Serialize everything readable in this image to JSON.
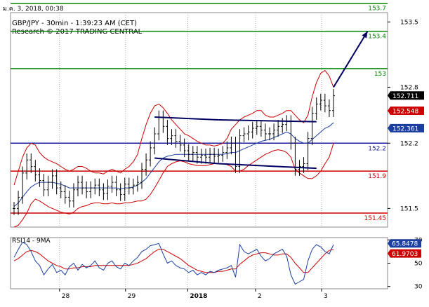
{
  "header": {
    "timestamp": "ม.ค. 3, 2018, 00:38"
  },
  "chart_data": [
    {
      "type": "line",
      "instrument": "GBP/JPY - 30min - 1:39:23 AM (CET)",
      "source": "Research © 2017 TRADING CENTRAL",
      "y_range": [
        151.3,
        153.6
      ],
      "y_ticks": [
        {
          "value": 151.5,
          "label": "151.5"
        },
        {
          "value": 152.2,
          "label": "152.2"
        },
        {
          "value": 152.8,
          "label": "152.8"
        },
        {
          "value": 153.5,
          "label": "153.5"
        }
      ],
      "x_ticks": [
        {
          "pos": 0.13,
          "label": "28",
          "bold": false
        },
        {
          "pos": 0.305,
          "label": "29",
          "bold": false
        },
        {
          "pos": 0.47,
          "label": "2018",
          "bold": true
        },
        {
          "pos": 0.65,
          "label": "2",
          "bold": false
        },
        {
          "pos": 0.825,
          "label": "3",
          "bold": false
        }
      ],
      "levels": [
        {
          "label": "153.7",
          "value": 153.7,
          "color": "#008800"
        },
        {
          "label": "153.4",
          "value": 153.4,
          "color": "#008800"
        },
        {
          "label": "153",
          "value": 153.0,
          "color": "#008800"
        },
        {
          "label": "152.2",
          "value": 152.2,
          "color": "#1a1aa0"
        },
        {
          "label": "151.9",
          "value": 151.9,
          "color": "#cc0000"
        },
        {
          "label": "151.45",
          "value": 151.45,
          "color": "#cc0000"
        }
      ],
      "price_tags": [
        {
          "label": "152.711",
          "value": 152.711,
          "bg": "#000000",
          "fg": "#ffffff"
        },
        {
          "label": "152.548",
          "value": 152.548,
          "bg": "#cc0000",
          "fg": "#ffffff"
        },
        {
          "label": "152.361",
          "value": 152.361,
          "bg": "#1a3fa0",
          "fg": "#ffffff"
        }
      ],
      "close_series": [
        151.5,
        151.62,
        151.88,
        152.02,
        151.95,
        151.86,
        151.8,
        151.7,
        151.78,
        151.85,
        151.72,
        151.68,
        151.62,
        151.58,
        151.7,
        151.78,
        151.72,
        151.68,
        151.72,
        151.75,
        151.7,
        151.66,
        151.74,
        151.78,
        151.7,
        151.65,
        151.76,
        151.72,
        151.75,
        151.78,
        151.92,
        152.02,
        152.15,
        152.3,
        152.48,
        152.38,
        152.25,
        152.28,
        152.22,
        152.18,
        152.12,
        152.08,
        152.1,
        152.05,
        152.07,
        152.05,
        152.08,
        152.06,
        152.07,
        152.1,
        152.15,
        152.2,
        151.95,
        152.28,
        152.3,
        152.32,
        152.36,
        152.38,
        152.34,
        152.3,
        152.3,
        152.34,
        152.38,
        152.4,
        152.43,
        152.2,
        151.92,
        151.95,
        151.98,
        152.25,
        152.52,
        152.62,
        152.66,
        152.6,
        152.55,
        152.71
      ],
      "bands_upper": [
        151.75,
        151.9,
        152.05,
        152.15,
        152.2,
        152.18,
        152.1,
        152.05,
        152.02,
        152.0,
        151.98,
        151.95,
        151.92,
        151.9,
        151.92,
        151.95,
        151.95,
        151.93,
        151.9,
        151.88,
        151.88,
        151.87,
        151.9,
        151.92,
        151.9,
        151.88,
        151.92,
        151.95,
        152.0,
        152.08,
        152.25,
        152.4,
        152.52,
        152.6,
        152.62,
        152.58,
        152.52,
        152.45,
        152.4,
        152.35,
        152.3,
        152.28,
        152.25,
        152.22,
        152.2,
        152.18,
        152.18,
        152.17,
        152.18,
        152.2,
        152.25,
        152.35,
        152.4,
        152.45,
        152.48,
        152.5,
        152.52,
        152.55,
        152.55,
        152.5,
        152.48,
        152.48,
        152.5,
        152.52,
        152.55,
        152.55,
        152.5,
        152.45,
        152.42,
        152.5,
        152.7,
        152.85,
        152.95,
        152.98,
        152.92,
        152.8
      ],
      "bands_lower": [
        151.3,
        151.32,
        151.38,
        151.45,
        151.55,
        151.6,
        151.58,
        151.55,
        151.52,
        151.5,
        151.48,
        151.46,
        151.45,
        151.44,
        151.46,
        151.5,
        151.52,
        151.53,
        151.55,
        151.56,
        151.56,
        151.55,
        151.55,
        151.56,
        151.55,
        151.55,
        151.56,
        151.56,
        151.57,
        151.58,
        151.58,
        151.6,
        151.65,
        151.72,
        151.8,
        151.88,
        151.95,
        151.98,
        152.0,
        152.01,
        152.0,
        151.98,
        151.97,
        151.96,
        151.96,
        151.96,
        151.97,
        151.98,
        151.98,
        151.98,
        151.97,
        151.95,
        151.9,
        151.9,
        151.92,
        151.96,
        151.99,
        152.02,
        152.05,
        152.08,
        152.1,
        152.12,
        152.13,
        152.12,
        152.1,
        152.05,
        151.92,
        151.88,
        151.85,
        151.82,
        151.82,
        151.85,
        151.9,
        151.98,
        152.05,
        152.2
      ],
      "ma_series": [
        151.52,
        151.56,
        151.62,
        151.68,
        151.73,
        151.76,
        151.78,
        151.78,
        151.78,
        151.78,
        151.77,
        151.76,
        151.74,
        151.72,
        151.72,
        151.72,
        151.72,
        151.72,
        151.72,
        151.72,
        151.72,
        151.72,
        151.72,
        151.72,
        151.72,
        151.71,
        151.72,
        151.72,
        151.73,
        151.75,
        151.78,
        151.82,
        151.88,
        151.94,
        152.0,
        152.04,
        152.06,
        152.07,
        152.08,
        152.08,
        152.08,
        152.08,
        152.08,
        152.08,
        152.08,
        152.08,
        152.08,
        152.08,
        152.08,
        152.08,
        152.09,
        152.1,
        152.1,
        152.12,
        152.14,
        152.16,
        152.18,
        152.2,
        152.22,
        152.23,
        152.24,
        152.26,
        152.28,
        152.3,
        152.32,
        152.3,
        152.25,
        152.22,
        152.2,
        152.2,
        152.24,
        152.28,
        152.32,
        152.36,
        152.38,
        152.42
      ],
      "channels": [
        {
          "from_index": 0,
          "from_value": 151.45,
          "to_index": 0,
          "to_value": 151.45,
          "color": "#000060",
          "hidden": true
        },
        {
          "from_index": 33,
          "from_value": 152.48,
          "to_index": 48,
          "to_value": 152.45,
          "color": "#000060"
        },
        {
          "from_index": 33,
          "from_value": 152.04,
          "to_index": 48,
          "to_value": 151.98,
          "color": "#000060"
        },
        {
          "from_index": 48,
          "from_value": 152.45,
          "to_index": 71,
          "to_value": 152.43,
          "color": "#000060"
        },
        {
          "from_index": 48,
          "from_value": 151.98,
          "to_index": 71,
          "to_value": 151.93,
          "color": "#000060"
        }
      ],
      "projection": {
        "from_index": 75,
        "from_value": 152.8,
        "to_index": 83,
        "to_value": 153.4,
        "color": "#000060"
      }
    },
    {
      "type": "line",
      "title": "RSI14 - 9MA",
      "y_range": [
        28,
        72
      ],
      "y_ticks": [
        {
          "value": 30,
          "label": "30"
        },
        {
          "value": 50,
          "label": "50"
        },
        {
          "value": 70,
          "label": "70"
        }
      ],
      "rsi_series": [
        55,
        62,
        68,
        66,
        60,
        52,
        48,
        40,
        45,
        49,
        42,
        44,
        40,
        47,
        50,
        44,
        49,
        46,
        48,
        52,
        46,
        44,
        50,
        52,
        47,
        45,
        50,
        48,
        52,
        55,
        60,
        62,
        65,
        66,
        67,
        58,
        50,
        52,
        48,
        46,
        45,
        42,
        44,
        40,
        42,
        40,
        43,
        42,
        44,
        45,
        46,
        48,
        38,
        66,
        60,
        58,
        60,
        62,
        56,
        52,
        54,
        58,
        60,
        62,
        56,
        40,
        32,
        34,
        36,
        52,
        62,
        66,
        64,
        60,
        58,
        66
      ],
      "rsi_ma_series": [
        52,
        54,
        57,
        60,
        61,
        60,
        58,
        55,
        52,
        50,
        48,
        47,
        45,
        45,
        46,
        46,
        47,
        47,
        47,
        48,
        48,
        48,
        48,
        48,
        48,
        48,
        48,
        48,
        49,
        50,
        52,
        54,
        57,
        60,
        62,
        62,
        60,
        58,
        56,
        54,
        51,
        48,
        46,
        44,
        43,
        42,
        42,
        42,
        43,
        43,
        44,
        45,
        45,
        49,
        52,
        55,
        57,
        58,
        59,
        59,
        58,
        57,
        57,
        58,
        58,
        55,
        50,
        46,
        42,
        42,
        46,
        50,
        54,
        58,
        61,
        62
      ],
      "tags": [
        {
          "label": "65.8478",
          "value": 65.8478,
          "bg": "#1a3fa0",
          "fg": "#ffffff"
        },
        {
          "label": "61.9703",
          "value": 61.9703,
          "bg": "#cc0000",
          "fg": "#ffffff"
        }
      ]
    }
  ]
}
